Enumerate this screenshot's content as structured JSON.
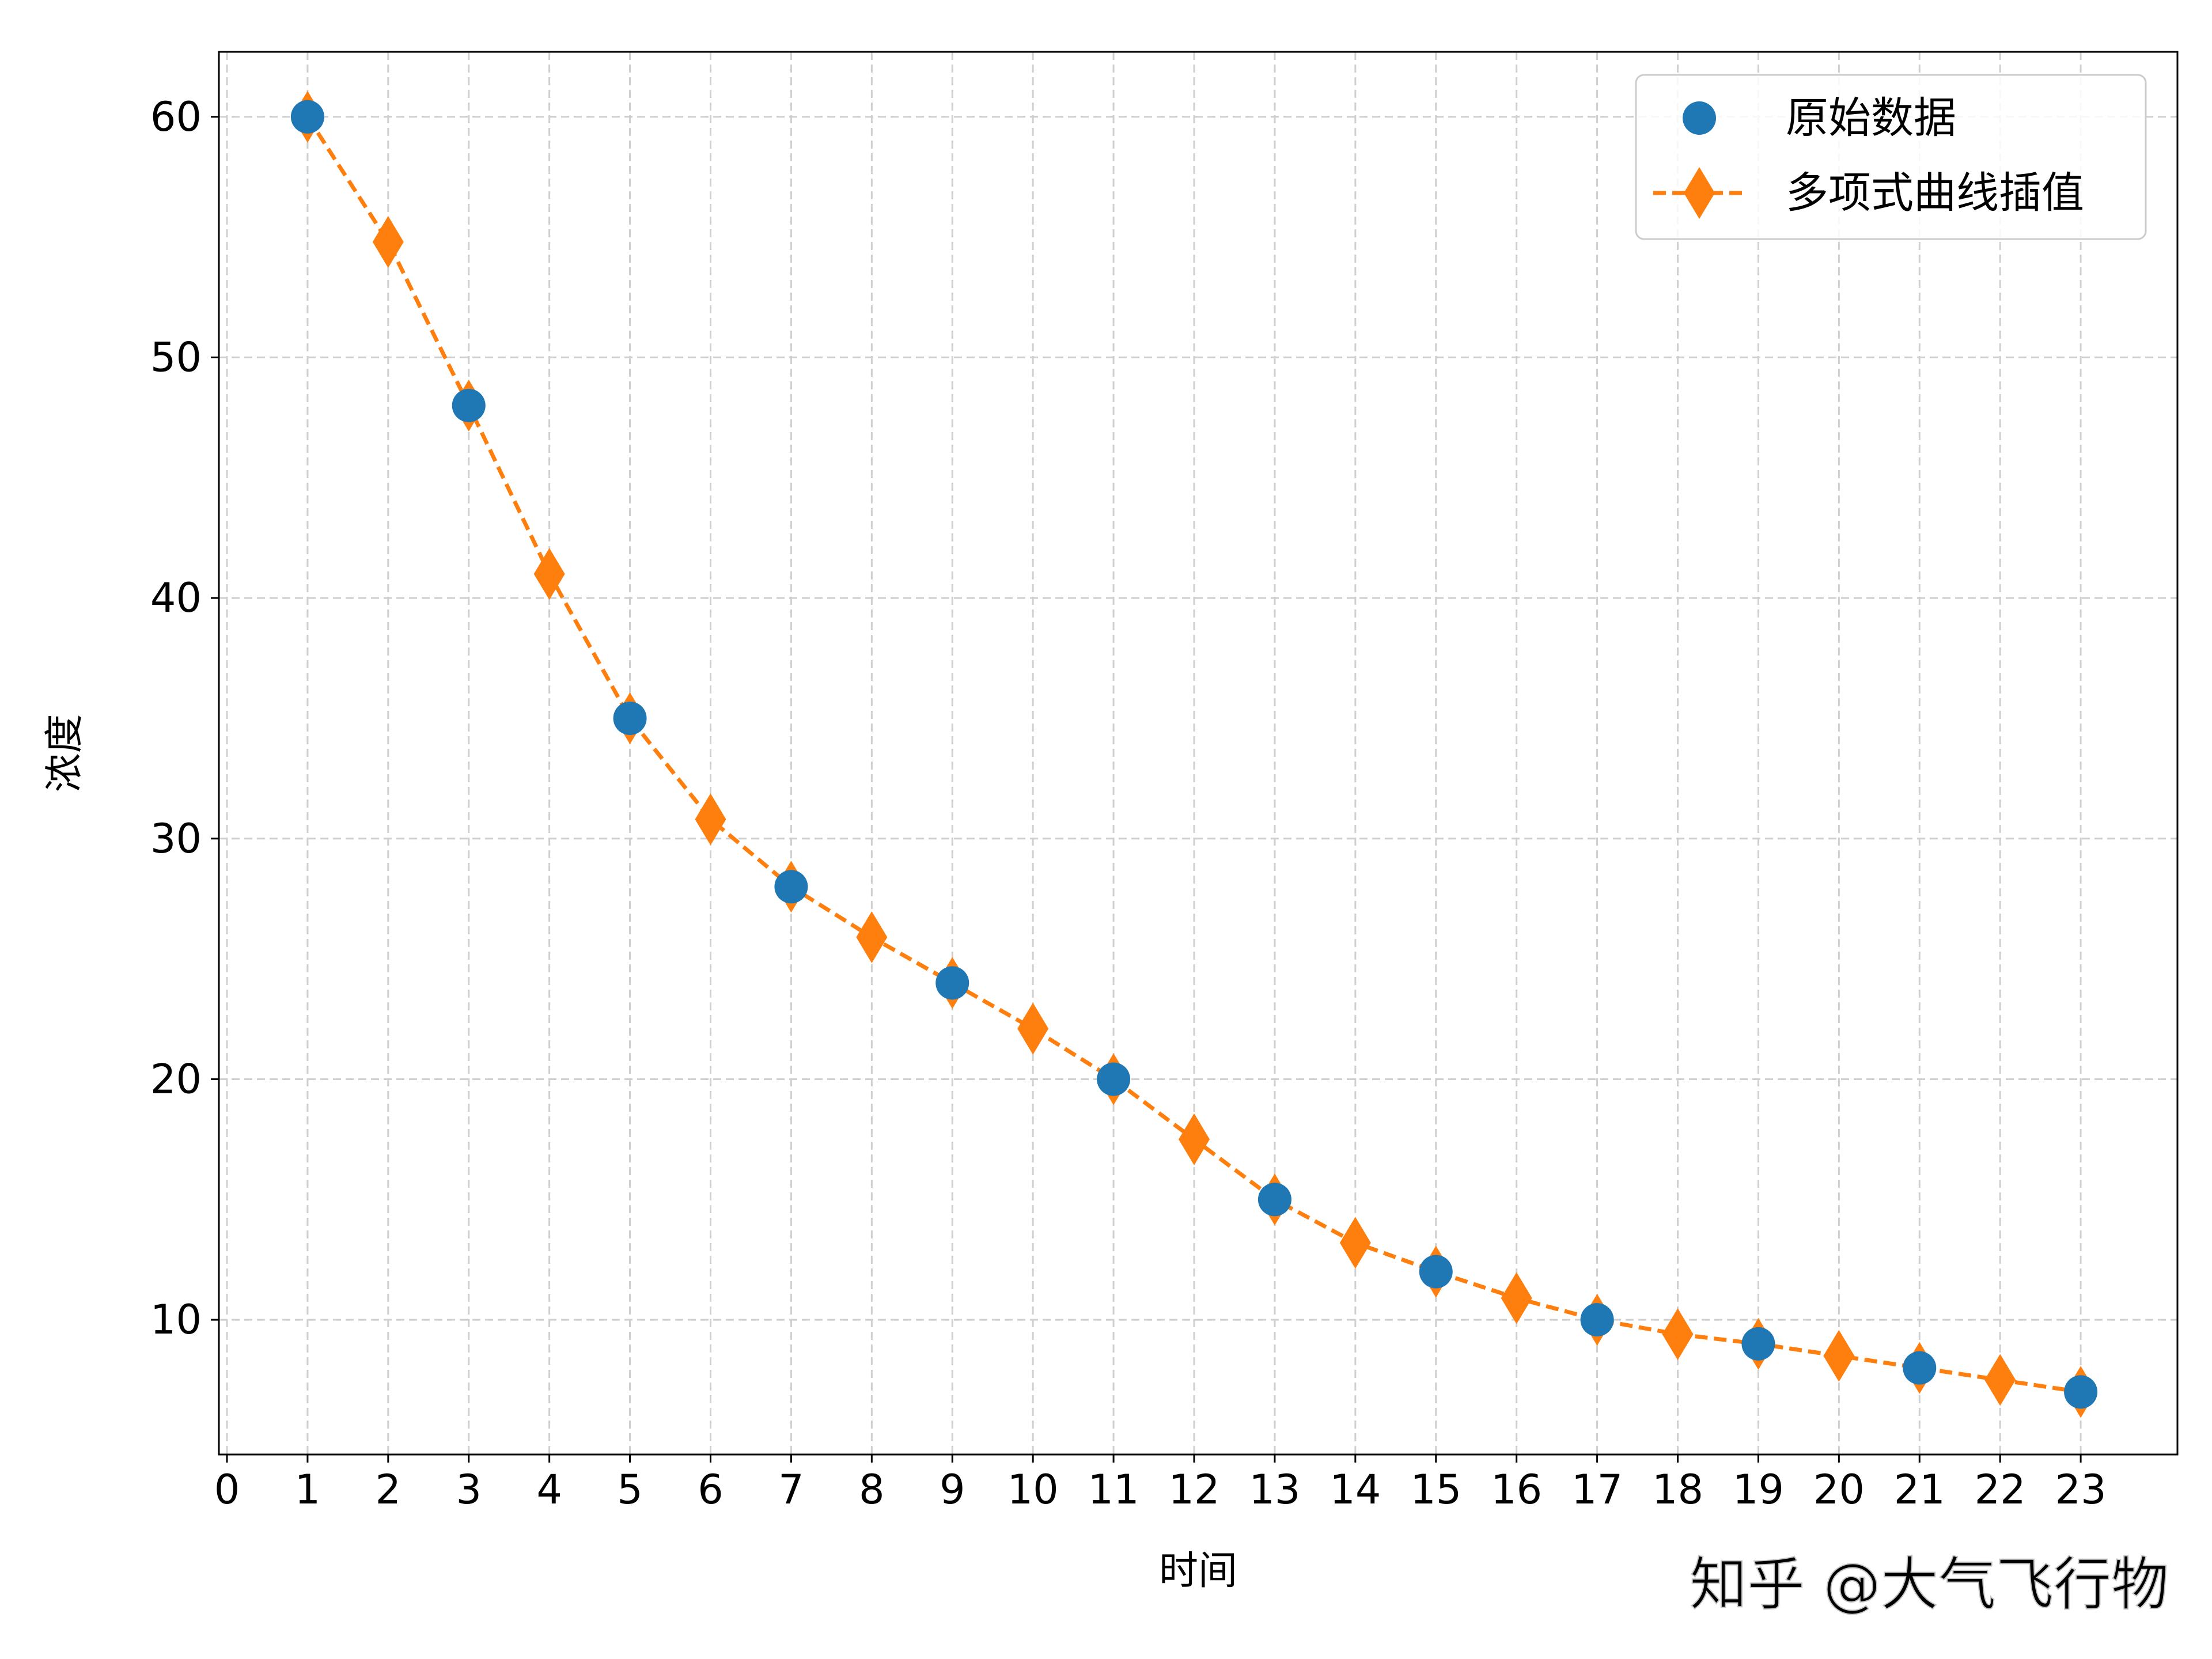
{
  "chart_data": {
    "type": "line",
    "title": "",
    "xlabel": "时间",
    "ylabel": "浓度",
    "xlim": [
      -0.1,
      24.2
    ],
    "ylim": [
      4.4,
      62.7
    ],
    "xticks": [
      0,
      1,
      2,
      3,
      4,
      5,
      6,
      7,
      8,
      9,
      10,
      11,
      12,
      13,
      14,
      15,
      16,
      17,
      18,
      19,
      20,
      21,
      22,
      23
    ],
    "yticks": [
      10,
      20,
      30,
      40,
      50,
      60
    ],
    "grid": true,
    "legend_position": "top-right",
    "series": [
      {
        "name": "原始数据",
        "type": "scatter",
        "marker": "circle",
        "color": "#1f77b4",
        "x": [
          1,
          3,
          5,
          7,
          9,
          11,
          13,
          15,
          17,
          19,
          21,
          23
        ],
        "y": [
          60,
          48,
          35,
          28,
          24,
          20,
          15,
          12,
          10,
          9,
          8,
          7
        ]
      },
      {
        "name": "多项式曲线插值",
        "type": "line",
        "line_style": "dashed",
        "marker": "diamond",
        "color": "#ff7f0e",
        "x": [
          1,
          2,
          3,
          4,
          5,
          6,
          7,
          8,
          9,
          10,
          11,
          12,
          13,
          14,
          15,
          16,
          17,
          18,
          19,
          20,
          21,
          22,
          23
        ],
        "y": [
          60,
          54.8,
          48,
          41,
          35,
          30.8,
          28,
          25.9,
          24,
          22.1,
          20,
          17.5,
          15,
          13.2,
          12,
          10.9,
          10,
          9.4,
          9,
          8.5,
          8,
          7.5,
          7
        ]
      }
    ]
  },
  "watermark": "知乎 @大气飞行物"
}
